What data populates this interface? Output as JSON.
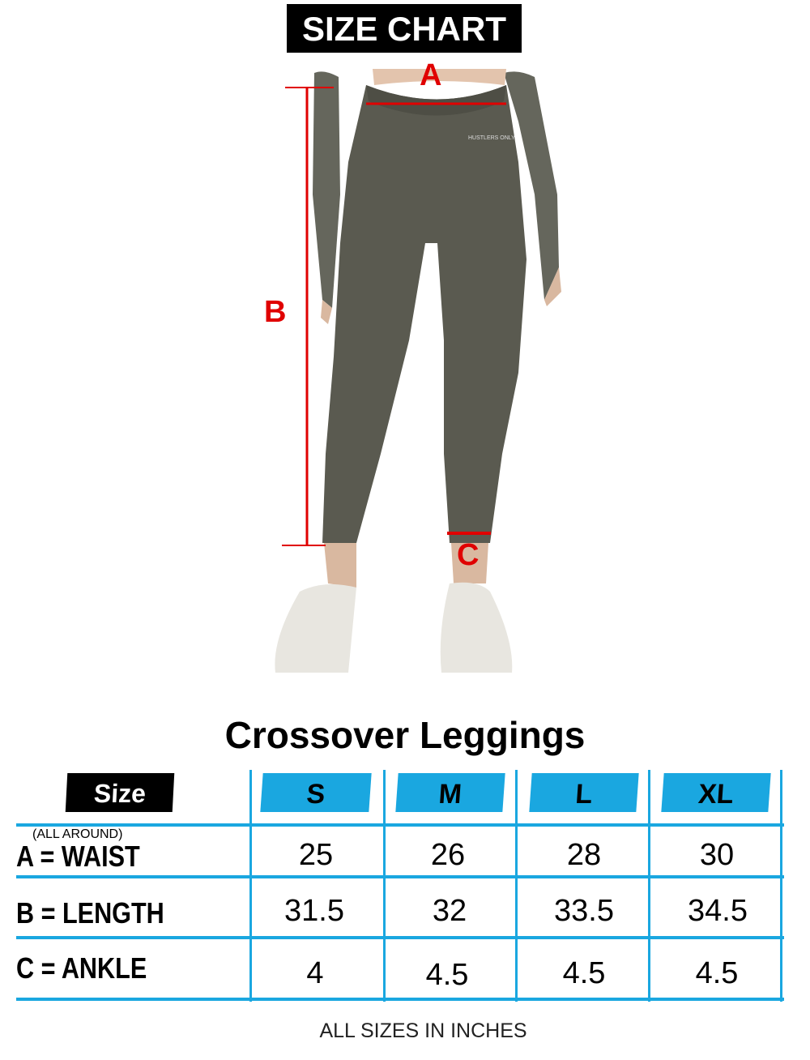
{
  "title": "SIZE CHART",
  "measure_labels": {
    "a": "A",
    "b": "B",
    "c": "C"
  },
  "brand_print": "HUSTLERS ONLY",
  "product_name": "Crossover Leggings",
  "table": {
    "header_label": "Size",
    "sizes": [
      "S",
      "M",
      "L",
      "XL"
    ],
    "rows": [
      {
        "label": "A = WAIST",
        "note": "(ALL AROUND)",
        "values": [
          "25",
          "26",
          "28",
          "30"
        ]
      },
      {
        "label": "B = LENGTH",
        "values": [
          "31.5",
          "32",
          "33.5",
          "34.5"
        ]
      },
      {
        "label": "C = ANKLE",
        "values": [
          "4",
          "4.5",
          "4.5",
          "4.5"
        ]
      }
    ]
  },
  "footer": "ALL SIZES IN INCHES",
  "colors": {
    "accent_blue": "#1aa7e0",
    "measure_red": "#e00000",
    "garment": "#5a5a50"
  }
}
